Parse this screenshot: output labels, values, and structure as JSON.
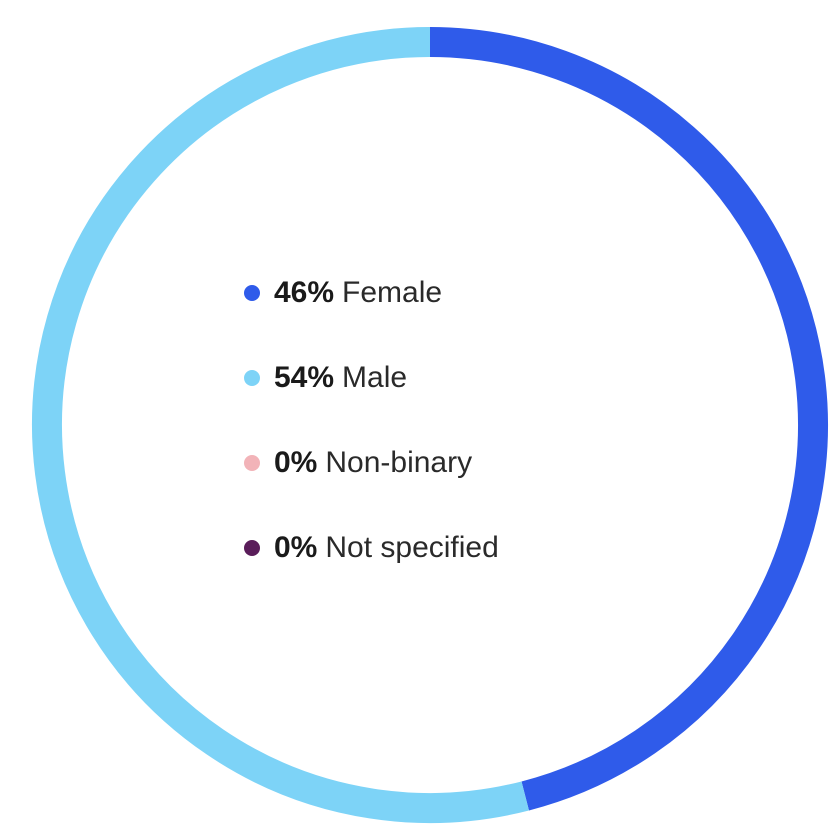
{
  "chart_data": {
    "type": "pie",
    "variant": "donut",
    "categories": [
      "Female",
      "Male",
      "Non-binary",
      "Not specified"
    ],
    "values": [
      46,
      54,
      0,
      0
    ],
    "value_labels": [
      "46%",
      "54%",
      "0%",
      "0%"
    ],
    "colors": [
      "#2f5bea",
      "#7dd3f7",
      "#f2b3b8",
      "#5a1d5a"
    ],
    "legend_placement": "center"
  }
}
